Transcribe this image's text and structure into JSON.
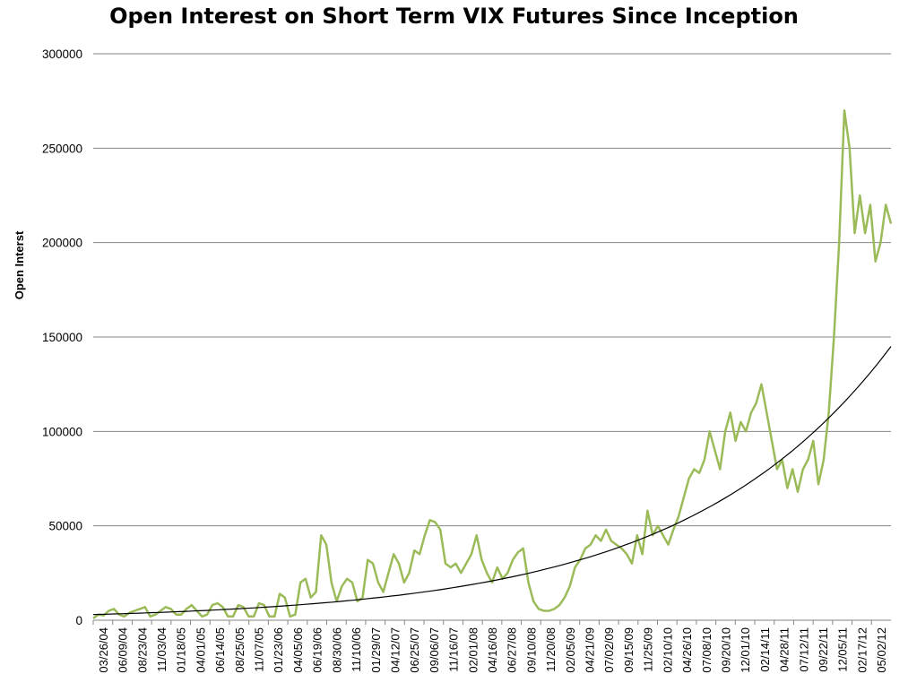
{
  "chart_data": {
    "type": "line",
    "title": "Open Interest on Short Term VIX Futures Since Inception",
    "xlabel": "",
    "ylabel": "Open Interst",
    "ylim": [
      0,
      300000
    ],
    "yticks": [
      "0",
      "50000",
      "100000",
      "150000",
      "200000",
      "250000",
      "300000"
    ],
    "xticks": [
      "03/26/04",
      "06/09/04",
      "08/23/04",
      "11/03/04",
      "01/18/05",
      "04/01/05",
      "06/14/05",
      "08/25/05",
      "11/07/05",
      "01/23/06",
      "04/05/06",
      "06/19/06",
      "08/30/06",
      "11/10/06",
      "01/29/07",
      "04/12/07",
      "06/25/07",
      "09/06/07",
      "11/16/07",
      "02/01/08",
      "04/16/08",
      "06/27/08",
      "09/10/08",
      "11/20/08",
      "02/05/09",
      "04/21/09",
      "07/02/09",
      "09/15/09",
      "11/25/09",
      "02/10/10",
      "04/26/10",
      "07/08/10",
      "09/20/10",
      "12/01/10",
      "02/14/11",
      "04/28/11",
      "07/12/11",
      "09/22/11",
      "12/05/11",
      "02/17/12",
      "05/02/12"
    ],
    "grid": true,
    "legend": "none",
    "colors": {
      "series": "#9BBB59",
      "trend": "#000000",
      "grid": "#868686"
    },
    "series": [
      {
        "kind": "data",
        "values": [
          1000,
          3000,
          2500,
          5000,
          6000,
          3000,
          2000,
          4000,
          5000,
          6000,
          7000,
          2000,
          3000,
          5000,
          7000,
          6000,
          3000,
          3000,
          6000,
          8000,
          5000,
          2000,
          3000,
          8000,
          9000,
          7000,
          2000,
          2000,
          8000,
          7000,
          2000,
          2000,
          9000,
          8000,
          2000,
          2000,
          14000,
          12000,
          2000,
          3000,
          20000,
          22000,
          12000,
          15000,
          45000,
          40000,
          20000,
          10000,
          18000,
          22000,
          20000,
          10000,
          12000,
          32000,
          30000,
          20000,
          15000,
          25000,
          35000,
          30000,
          20000,
          25000,
          37000,
          35000,
          45000,
          53000,
          52000,
          48000,
          30000,
          28000,
          30000,
          25000,
          30000,
          35000,
          45000,
          32000,
          25000,
          20000,
          28000,
          22000,
          25000,
          32000,
          36000,
          38000,
          20000,
          10000,
          6000,
          5000,
          5000,
          6000,
          8000,
          12000,
          18000,
          28000,
          32000,
          38000,
          40000,
          45000,
          42000,
          48000,
          42000,
          40000,
          38000,
          35000,
          30000,
          45000,
          35000,
          58000,
          45000,
          50000,
          45000,
          40000,
          48000,
          55000,
          65000,
          75000,
          80000,
          78000,
          85000,
          100000,
          90000,
          80000,
          100000,
          110000,
          95000,
          105000,
          100000,
          110000,
          115000,
          125000,
          110000,
          95000,
          80000,
          85000,
          70000,
          80000,
          68000,
          80000,
          85000,
          95000,
          72000,
          85000,
          110000,
          150000,
          200000,
          270000,
          250000,
          205000,
          225000,
          205000,
          220000,
          190000,
          200000,
          220000,
          210000
        ]
      },
      {
        "kind": "trend",
        "values": [
          3000,
          145000
        ]
      }
    ]
  }
}
